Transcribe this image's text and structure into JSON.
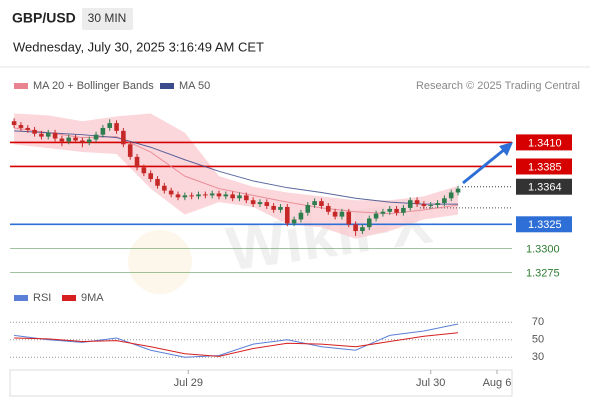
{
  "header": {
    "symbol": "GBP/USD",
    "timeframe": "30 MIN",
    "datetime": "Wednesday, July 30, 2025 3:16:49 AM CET"
  },
  "chart_data": [
    {
      "type": "candlestick",
      "source": "Research © 2025 Trading Central",
      "watermark": "WikiFX",
      "up_color": "#2e7d4f",
      "down_color": "#c62828",
      "xlim": [
        -0.6,
        72.9
      ],
      "ylim": [
        1.3262,
        1.3454
      ],
      "xticks": [
        {
          "value": 25.5,
          "label": "Jul 29"
        },
        {
          "value": 61,
          "label": "Jul 30"
        },
        {
          "value": 70.7,
          "label": "Aug 6"
        }
      ],
      "candles": [
        [
          1.3432,
          1.3435,
          1.3425,
          1.3428
        ],
        [
          1.3428,
          1.3431,
          1.3422,
          1.3425
        ],
        [
          1.3425,
          1.3428,
          1.342,
          1.3423
        ],
        [
          1.3423,
          1.3426,
          1.3416,
          1.3419
        ],
        [
          1.3419,
          1.3422,
          1.3413,
          1.3416
        ],
        [
          1.3416,
          1.3423,
          1.3413,
          1.342
        ],
        [
          1.342,
          1.3423,
          1.3411,
          1.3414
        ],
        [
          1.3414,
          1.3417,
          1.3406,
          1.3411
        ],
        [
          1.3411,
          1.3418,
          1.3408,
          1.3415
        ],
        [
          1.3415,
          1.3418,
          1.3409,
          1.3412
        ],
        [
          1.3412,
          1.3415,
          1.3405,
          1.341
        ],
        [
          1.341,
          1.3416,
          1.3407,
          1.3413
        ],
        [
          1.3413,
          1.3421,
          1.341,
          1.3418
        ],
        [
          1.3418,
          1.3428,
          1.3415,
          1.3425
        ],
        [
          1.3425,
          1.3434,
          1.3422,
          1.343
        ],
        [
          1.343,
          1.3433,
          1.3419,
          1.3422
        ],
        [
          1.3422,
          1.3425,
          1.3405,
          1.3408
        ],
        [
          1.3408,
          1.3411,
          1.3392,
          1.3395
        ],
        [
          1.3395,
          1.3398,
          1.3381,
          1.3384
        ],
        [
          1.3384,
          1.3387,
          1.3375,
          1.3378
        ],
        [
          1.3378,
          1.3381,
          1.3369,
          1.3372
        ],
        [
          1.3372,
          1.3375,
          1.3362,
          1.3365
        ],
        [
          1.3365,
          1.3368,
          1.3357,
          1.336
        ],
        [
          1.336,
          1.3363,
          1.3353,
          1.3356
        ],
        [
          1.3356,
          1.3359,
          1.335,
          1.3353
        ],
        [
          1.3353,
          1.3358,
          1.335,
          1.3355
        ],
        [
          1.3355,
          1.3358,
          1.3351,
          1.3354
        ],
        [
          1.3354,
          1.3359,
          1.3351,
          1.3356
        ],
        [
          1.3356,
          1.3359,
          1.3352,
          1.3355
        ],
        [
          1.3355,
          1.336,
          1.3352,
          1.3357
        ],
        [
          1.3357,
          1.336,
          1.3351,
          1.3354
        ],
        [
          1.3354,
          1.3359,
          1.3351,
          1.3356
        ],
        [
          1.3356,
          1.3359,
          1.3349,
          1.3352
        ],
        [
          1.3352,
          1.3358,
          1.3349,
          1.3355
        ],
        [
          1.3355,
          1.3358,
          1.3347,
          1.335
        ],
        [
          1.335,
          1.3353,
          1.3343,
          1.3346
        ],
        [
          1.3346,
          1.3351,
          1.3343,
          1.3348
        ],
        [
          1.3348,
          1.3351,
          1.3341,
          1.3344
        ],
        [
          1.3344,
          1.3347,
          1.3337,
          1.334
        ],
        [
          1.334,
          1.3346,
          1.3337,
          1.3343
        ],
        [
          1.3343,
          1.3346,
          1.3323,
          1.3326
        ],
        [
          1.3326,
          1.3333,
          1.3323,
          1.333
        ],
        [
          1.333,
          1.334,
          1.3327,
          1.3337
        ],
        [
          1.3337,
          1.3348,
          1.3334,
          1.3345
        ],
        [
          1.3345,
          1.3352,
          1.3342,
          1.3349
        ],
        [
          1.3349,
          1.3352,
          1.3341,
          1.3344
        ],
        [
          1.3344,
          1.3347,
          1.3335,
          1.3338
        ],
        [
          1.3338,
          1.3341,
          1.333,
          1.3333
        ],
        [
          1.3333,
          1.3341,
          1.333,
          1.3338
        ],
        [
          1.3338,
          1.3341,
          1.3322,
          1.3325
        ],
        [
          1.3325,
          1.3328,
          1.3313,
          1.3318
        ],
        [
          1.3318,
          1.3325,
          1.3315,
          1.3322
        ],
        [
          1.3322,
          1.3334,
          1.3319,
          1.3331
        ],
        [
          1.3331,
          1.3339,
          1.3328,
          1.3336
        ],
        [
          1.3336,
          1.3341,
          1.3333,
          1.3338
        ],
        [
          1.3338,
          1.3344,
          1.3335,
          1.3341
        ],
        [
          1.3341,
          1.3344,
          1.3334,
          1.3337
        ],
        [
          1.3337,
          1.3345,
          1.3334,
          1.3342
        ],
        [
          1.3342,
          1.3353,
          1.3339,
          1.335
        ],
        [
          1.335,
          1.3353,
          1.3343,
          1.3346
        ],
        [
          1.3346,
          1.3349,
          1.3341,
          1.3344
        ],
        [
          1.3344,
          1.3348,
          1.3341,
          1.3345
        ],
        [
          1.3345,
          1.335,
          1.3342,
          1.3347
        ],
        [
          1.3347,
          1.3355,
          1.3344,
          1.3352
        ],
        [
          1.3352,
          1.3361,
          1.3349,
          1.3358
        ],
        [
          1.3358,
          1.3365,
          1.3355,
          1.3362
        ]
      ],
      "series": [
        {
          "name": "MA 20 + Bollinger Bands",
          "color": "#e8838f",
          "band_color": "#f9c9cf",
          "x": [
            0,
            5,
            10,
            15,
            20,
            25,
            30,
            35,
            40,
            45,
            50,
            55,
            60,
            65
          ],
          "values": [
            1.3425,
            1.342,
            1.3415,
            1.3416,
            1.34,
            1.3375,
            1.3362,
            1.3355,
            1.3348,
            1.3342,
            1.3338,
            1.3336,
            1.334,
            1.3345
          ],
          "upper": [
            1.344,
            1.3438,
            1.3432,
            1.3437,
            1.344,
            1.342,
            1.3375,
            1.3364,
            1.3358,
            1.3354,
            1.335,
            1.335,
            1.3354,
            1.3365
          ],
          "lower": [
            1.3408,
            1.3404,
            1.34,
            1.3398,
            1.3362,
            1.3335,
            1.3348,
            1.3343,
            1.3325,
            1.3322,
            1.331,
            1.3318,
            1.333,
            1.3335
          ]
        },
        {
          "name": "MA 50",
          "color": "#3b4b8c",
          "x": [
            0,
            5,
            10,
            15,
            20,
            25,
            30,
            35,
            40,
            45,
            50,
            55,
            60,
            65
          ],
          "values": [
            1.3422,
            1.342,
            1.3418,
            1.3415,
            1.3405,
            1.3392,
            1.338,
            1.337,
            1.3363,
            1.3358,
            1.3352,
            1.3348,
            1.3346,
            1.3346
          ]
        }
      ],
      "levels": [
        {
          "value": 1.341,
          "label": "1.3410",
          "color": "#d60000",
          "style": "box"
        },
        {
          "value": 1.3385,
          "color": "#d60000",
          "style": "box"
        },
        {
          "value": 1.3364,
          "color": "#333333",
          "style": "current"
        },
        {
          "value": 1.3342,
          "color": "#555555",
          "style": "dotted"
        },
        {
          "value": 1.3325,
          "color": "#2d6fd6",
          "style": "box"
        },
        {
          "value": 1.33,
          "label": "1.3300",
          "color": "#2e7d32",
          "style": "text"
        },
        {
          "value": 1.3275,
          "color": "#2e7d32",
          "style": "text"
        }
      ]
    },
    {
      "type": "line",
      "xlim": [
        -0.6,
        72.9
      ],
      "ylim": [
        20,
        76
      ],
      "yticks": [
        30,
        50,
        70
      ],
      "series": [
        {
          "name": "RSI",
          "color": "#5b7fd6",
          "x": [
            0,
            5,
            10,
            15,
            20,
            25,
            30,
            35,
            40,
            45,
            50,
            55,
            60,
            65
          ],
          "values": [
            55,
            50,
            47,
            52,
            38,
            30,
            32,
            45,
            50,
            42,
            38,
            55,
            60,
            68
          ]
        },
        {
          "name": "9MA",
          "color": "#d61f1f",
          "x": [
            0,
            5,
            10,
            15,
            20,
            25,
            30,
            35,
            40,
            45,
            50,
            55,
            60,
            65
          ],
          "values": [
            52,
            51,
            48,
            49,
            42,
            34,
            31,
            40,
            46,
            45,
            42,
            48,
            54,
            58
          ]
        }
      ]
    }
  ]
}
